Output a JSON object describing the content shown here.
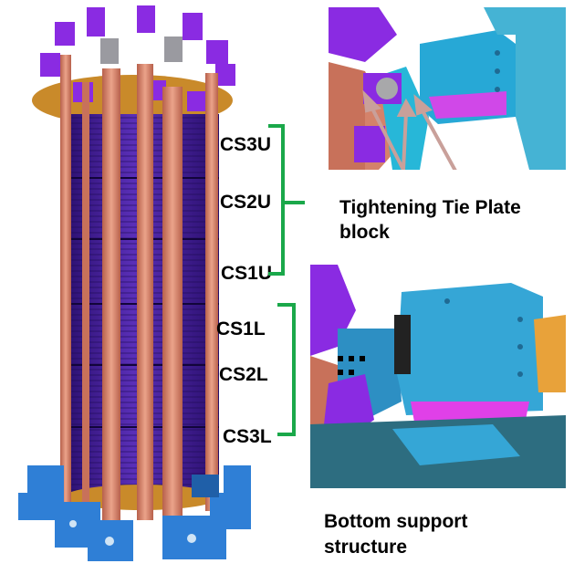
{
  "figure": {
    "coil_labels": {
      "upper": [
        "CS3U",
        "CS2U",
        "CS1U"
      ],
      "lower": [
        "CS1L",
        "CS2L",
        "CS3L"
      ]
    },
    "top_inset_caption": [
      "Tightening Tie Plate",
      "block"
    ],
    "bottom_inset_caption": [
      "Bottom support",
      "structure"
    ],
    "colors": {
      "bracket": "#1aa84a",
      "arrow": "#c9a09a",
      "coil": "#4a1f99",
      "tie_plate": "#d4826a",
      "clamp": "#8a2be2",
      "support": "#2f7fd6",
      "block": "#35a6d6",
      "magenta": "#e040e8"
    }
  }
}
